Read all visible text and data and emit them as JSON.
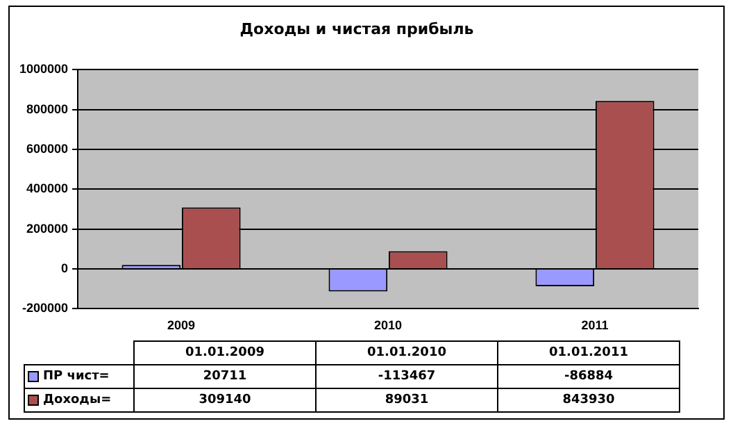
{
  "chart_data": {
    "type": "bar",
    "title": "Доходы и чистая прибыль",
    "categories": [
      "2009",
      "2010",
      "2011"
    ],
    "series": [
      {
        "name": "ПР чист=",
        "color": "#9999ff",
        "values": [
          20711,
          -113467,
          -86884
        ]
      },
      {
        "name": "Доходы=",
        "color": "#a94f4f",
        "values": [
          309140,
          89031,
          843930
        ]
      }
    ],
    "ylim": [
      -200000,
      1000000
    ],
    "yticks": [
      -200000,
      0,
      200000,
      400000,
      600000,
      800000,
      1000000
    ],
    "grid": "y",
    "legend": "bottom",
    "data_labels": true,
    "annotations": [
      "01.01.2009",
      "01.01.2010",
      "01.01.2011"
    ]
  }
}
